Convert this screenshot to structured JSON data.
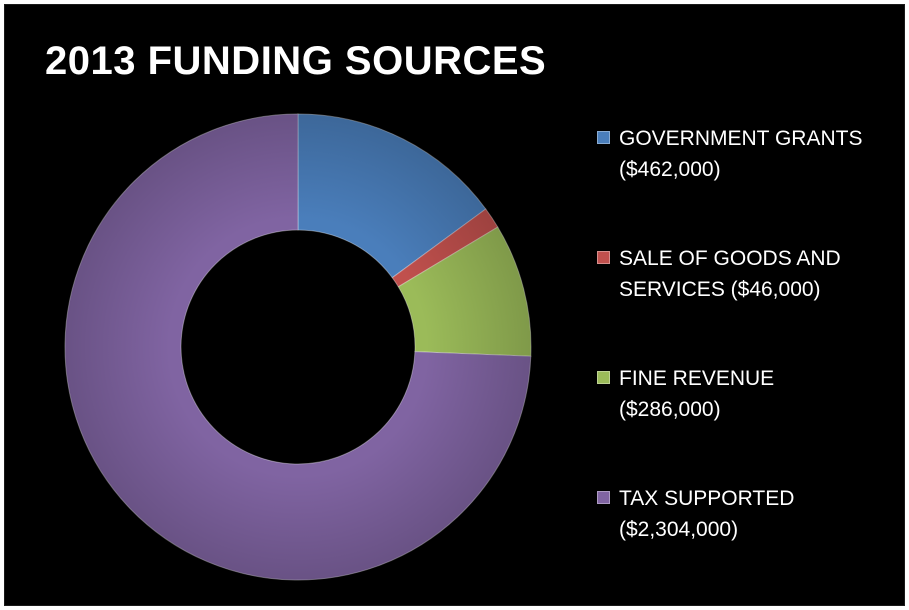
{
  "chart_data": {
    "type": "pie",
    "variant": "doughnut",
    "title": "2013 FUNDING SOURCES",
    "categories": [
      "GOVERNMENT GRANTS",
      "SALE OF GOODS AND SERVICES",
      "FINE REVENUE",
      "TAX SUPPORTED"
    ],
    "values": [
      462000,
      46000,
      286000,
      2304000
    ],
    "legend_lines": [
      [
        "GOVERNMENT GRANTS",
        "($462,000)"
      ],
      [
        "SALE OF GOODS AND",
        "SERVICES ($46,000)"
      ],
      [
        "FINE REVENUE",
        "($286,000)"
      ],
      [
        "TAX SUPPORTED",
        "($2,304,000)"
      ]
    ],
    "colors": [
      "#4A7EBB",
      "#C0504D",
      "#9BBB59",
      "#8064A2"
    ],
    "legend_position": "right",
    "background": "#000000"
  }
}
